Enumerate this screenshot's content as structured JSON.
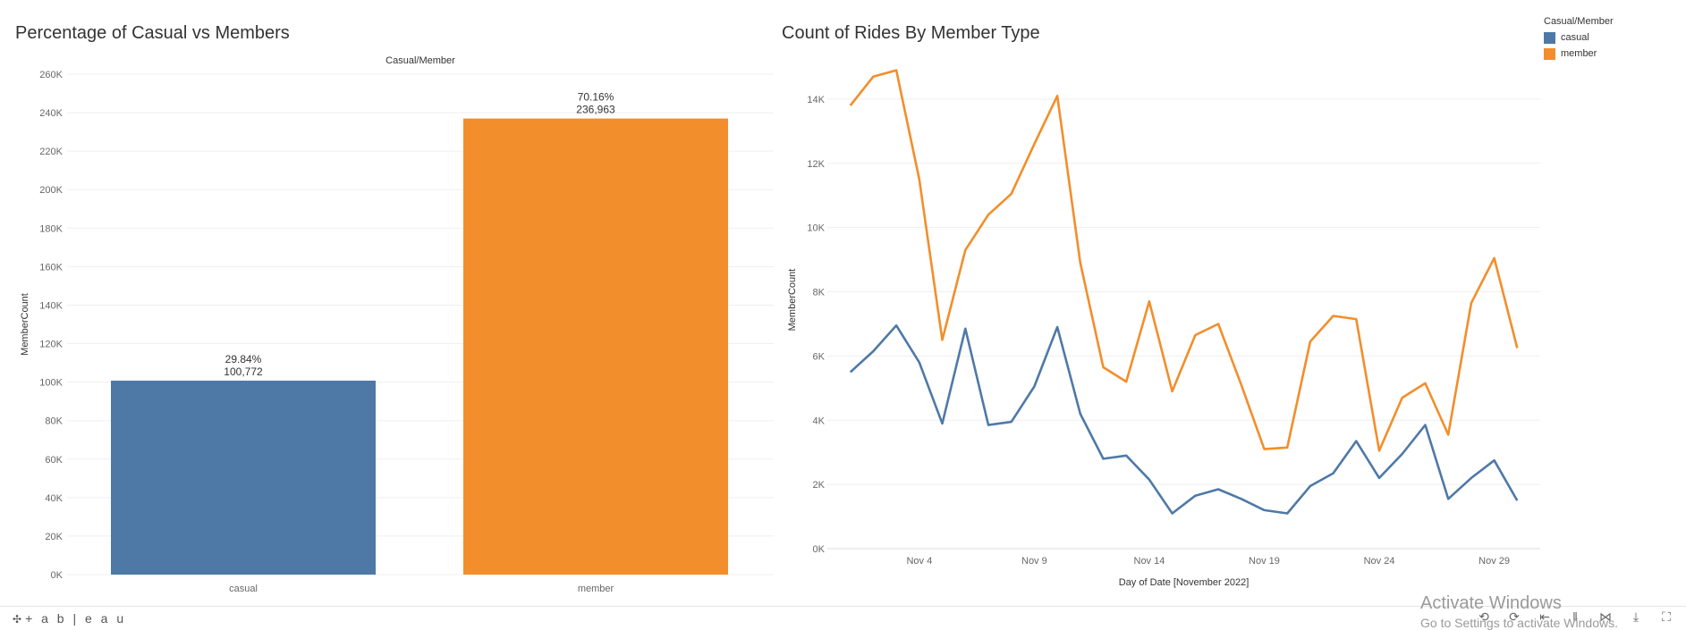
{
  "colors": {
    "casual": "#4e79a7",
    "member": "#f28e2b",
    "grid": "#efefef"
  },
  "bar_panel": {
    "title": "Percentage of Casual vs Members"
  },
  "line_panel": {
    "title": "Count of Rides By Member Type"
  },
  "legend": {
    "title": "Casual/Member",
    "items": [
      {
        "label": "casual",
        "color": "#4e79a7"
      },
      {
        "label": "member",
        "color": "#f28e2b"
      }
    ]
  },
  "footer": {
    "logo": "+ a b | e a u"
  },
  "toolbar": {
    "icons": [
      "undo-icon",
      "redo-icon",
      "revert-icon",
      "pause-icon",
      "share-icon",
      "download-icon",
      "fullscreen-icon"
    ]
  },
  "watermark": {
    "line1": "Activate Windows",
    "line2": "Go to Settings to activate Windows."
  },
  "chart_data": [
    {
      "type": "bar",
      "title": "Percentage of Casual vs Members",
      "header": "Casual/Member",
      "categories": [
        "casual",
        "member"
      ],
      "values": [
        100772,
        236963
      ],
      "percent_labels": [
        "29.84%",
        "70.16%"
      ],
      "value_labels": [
        "100,772",
        "236,963"
      ],
      "ylabel": "MemberCount",
      "ylim": [
        0,
        260000
      ],
      "yticks": [
        0,
        20000,
        40000,
        60000,
        80000,
        100000,
        120000,
        140000,
        160000,
        180000,
        200000,
        220000,
        240000,
        260000
      ],
      "ytick_labels": [
        "0K",
        "20K",
        "40K",
        "60K",
        "80K",
        "100K",
        "120K",
        "140K",
        "160K",
        "180K",
        "200K",
        "220K",
        "240K",
        "260K"
      ],
      "grid": true
    },
    {
      "type": "line",
      "title": "Count of Rides By Member Type",
      "xlabel": "Day of Date [November 2022]",
      "ylabel": "MemberCount",
      "x": [
        1,
        2,
        3,
        4,
        5,
        6,
        7,
        8,
        9,
        10,
        11,
        12,
        13,
        14,
        15,
        16,
        17,
        18,
        19,
        20,
        21,
        22,
        23,
        24,
        25,
        26,
        27,
        28,
        29,
        30
      ],
      "series": [
        {
          "name": "member",
          "values": [
            13800,
            14700,
            14900,
            11500,
            6500,
            9300,
            10400,
            11050,
            12600,
            14100,
            8900,
            5650,
            5200,
            7700,
            4900,
            6650,
            7000,
            5100,
            3100,
            3150,
            6450,
            7250,
            7150,
            3050,
            4700,
            5150,
            3550,
            7650,
            9050,
            6250
          ]
        },
        {
          "name": "casual",
          "values": [
            5500,
            6150,
            6950,
            5800,
            3900,
            6850,
            3850,
            3950,
            5050,
            6900,
            4200,
            2800,
            2900,
            2150,
            1100,
            1650,
            1850,
            1550,
            1200,
            1100,
            1950,
            2350,
            3350,
            2200,
            2950,
            3850,
            1550,
            2200,
            2750,
            1500
          ]
        }
      ],
      "xticks": [
        4,
        9,
        14,
        19,
        24,
        29
      ],
      "xtick_labels": [
        "Nov 4",
        "Nov 9",
        "Nov 14",
        "Nov 19",
        "Nov 24",
        "Nov 29"
      ],
      "ylim": [
        0,
        15500
      ],
      "yticks": [
        0,
        2000,
        4000,
        6000,
        8000,
        10000,
        12000,
        14000
      ],
      "ytick_labels": [
        "0K",
        "2K",
        "4K",
        "6K",
        "8K",
        "10K",
        "12K",
        "14K"
      ],
      "legend": "top-right",
      "grid": true
    }
  ]
}
